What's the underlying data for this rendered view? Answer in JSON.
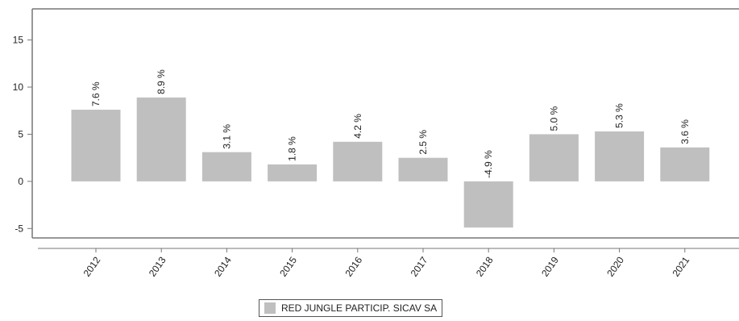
{
  "chart_data": {
    "type": "bar",
    "title": "",
    "xlabel": "",
    "ylabel": "",
    "categories": [
      "2012",
      "2013",
      "2014",
      "2015",
      "2016",
      "2017",
      "2018",
      "2019",
      "2020",
      "2021"
    ],
    "series": [
      {
        "name": "RED JUNGLE PARTICIP. SICAV SA",
        "values": [
          7.6,
          8.9,
          3.1,
          1.8,
          4.2,
          2.5,
          -4.9,
          5.0,
          5.3,
          3.6
        ],
        "labels": [
          "7.6 %",
          "8.9 %",
          "3.1 %",
          "1.8 %",
          "4.2 %",
          "2.5 %",
          "-4.9 %",
          "5.0 %",
          "5.3 %",
          "3.6 %"
        ],
        "color": "#bfbfbf"
      }
    ],
    "ylim": [
      -6,
      18.3
    ],
    "yticks": [
      -5,
      0,
      5,
      10,
      15
    ],
    "grid": false,
    "legend_position": "bottom-center"
  }
}
